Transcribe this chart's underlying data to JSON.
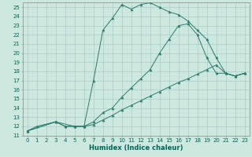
{
  "xlabel": "Humidex (Indice chaleur)",
  "bg_color": "#cce8df",
  "line_color": "#2d7a6e",
  "grid_color": "#aacccc",
  "xlim": [
    -0.5,
    23.5
  ],
  "ylim": [
    11,
    25.5
  ],
  "xticks": [
    0,
    1,
    2,
    3,
    4,
    5,
    6,
    7,
    8,
    9,
    10,
    11,
    12,
    13,
    14,
    15,
    16,
    17,
    18,
    19,
    20,
    21,
    22,
    23
  ],
  "yticks": [
    11,
    12,
    13,
    14,
    15,
    16,
    17,
    18,
    19,
    20,
    21,
    22,
    23,
    24,
    25
  ],
  "line1_x": [
    0,
    1,
    3,
    4,
    5,
    6,
    7,
    8,
    9,
    10,
    11,
    12,
    13,
    14,
    15,
    16,
    17,
    18,
    19,
    20,
    21,
    22,
    23
  ],
  "line1_y": [
    11.5,
    12.0,
    12.5,
    12.0,
    12.0,
    12.0,
    12.2,
    12.7,
    13.2,
    13.8,
    14.3,
    14.8,
    15.3,
    15.8,
    16.3,
    16.8,
    17.2,
    17.7,
    18.2,
    18.7,
    17.8,
    17.5,
    17.8
  ],
  "line2_x": [
    0,
    3,
    4,
    5,
    6,
    7,
    8,
    9,
    10,
    11,
    12,
    13,
    14,
    15,
    16,
    17,
    18,
    19,
    20,
    21,
    22,
    23
  ],
  "line2_y": [
    11.5,
    12.5,
    12.0,
    12.0,
    12.0,
    17.0,
    22.5,
    23.8,
    25.3,
    24.8,
    25.3,
    25.5,
    25.0,
    24.5,
    24.2,
    23.5,
    22.5,
    21.5,
    19.5,
    17.8,
    17.5,
    17.8
  ],
  "line3_x": [
    0,
    3,
    5,
    6,
    7,
    8,
    9,
    10,
    11,
    12,
    13,
    14,
    15,
    16,
    17,
    18,
    19,
    20,
    21,
    22,
    23
  ],
  "line3_y": [
    11.5,
    12.5,
    12.0,
    12.0,
    12.5,
    13.5,
    14.0,
    15.2,
    16.2,
    17.2,
    18.2,
    20.0,
    21.5,
    23.0,
    23.2,
    22.0,
    19.5,
    17.8,
    17.8,
    17.5,
    17.8
  ],
  "xlabel_fontsize": 6,
  "tick_fontsize": 5
}
